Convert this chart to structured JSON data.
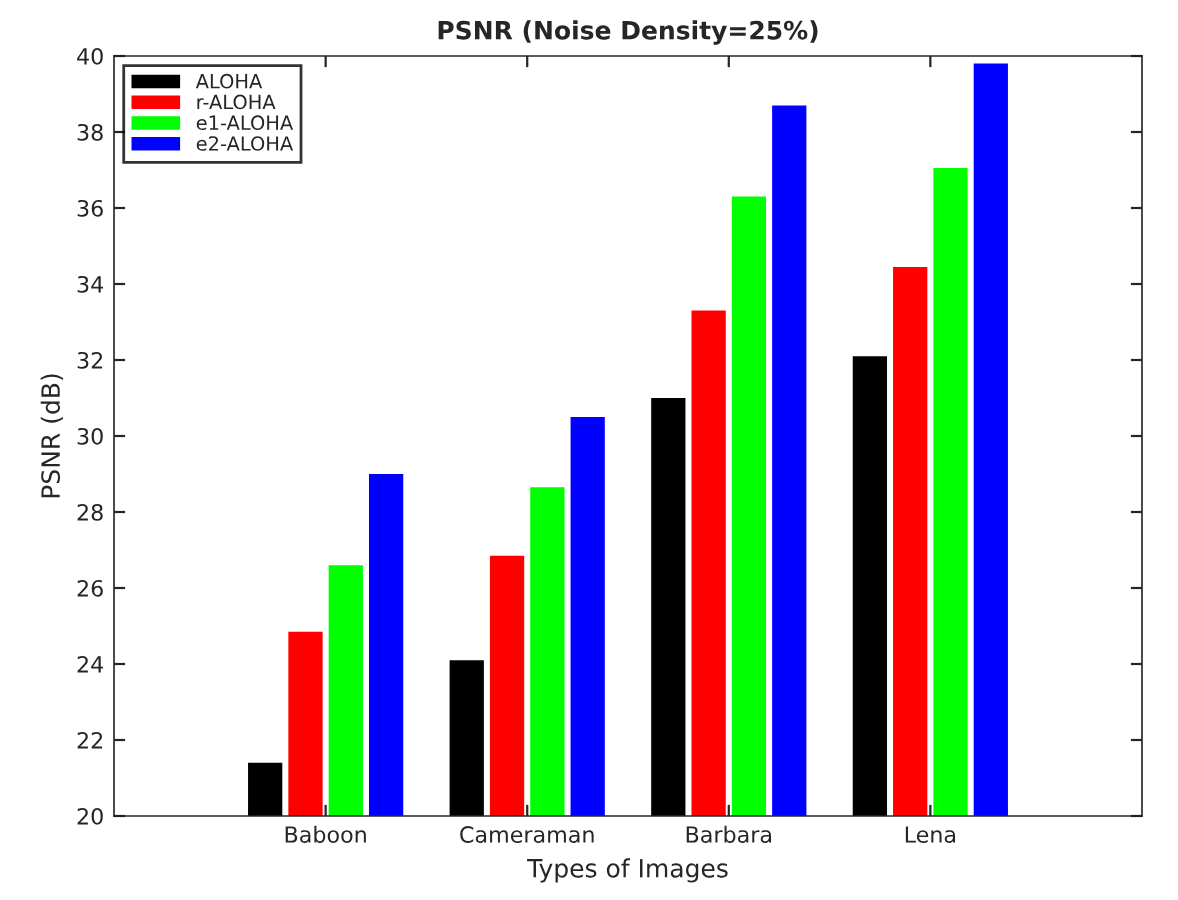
{
  "chart_data": {
    "type": "bar",
    "title": "PSNR (Noise Density=25%)",
    "xlabel": "Types of Images",
    "ylabel": "PSNR (dB)",
    "categories": [
      "Baboon",
      "Cameraman",
      "Barbara",
      "Lena"
    ],
    "series": [
      {
        "name": "ALOHA",
        "color": "#000000",
        "values": [
          21.4,
          24.1,
          31.0,
          32.1
        ]
      },
      {
        "name": "r-ALOHA",
        "color": "#ff0000",
        "values": [
          24.85,
          26.85,
          33.3,
          34.45
        ]
      },
      {
        "name": "e1-ALOHA",
        "color": "#00ff00",
        "values": [
          26.6,
          28.65,
          36.3,
          37.05
        ]
      },
      {
        "name": "e2-ALOHA",
        "color": "#0000ff",
        "values": [
          29.0,
          30.5,
          38.7,
          39.8
        ]
      }
    ],
    "ylim": [
      20,
      40
    ],
    "yticks": [
      20,
      22,
      24,
      26,
      28,
      30,
      32,
      34,
      36,
      38,
      40
    ],
    "grid": false,
    "legend": "top left"
  }
}
